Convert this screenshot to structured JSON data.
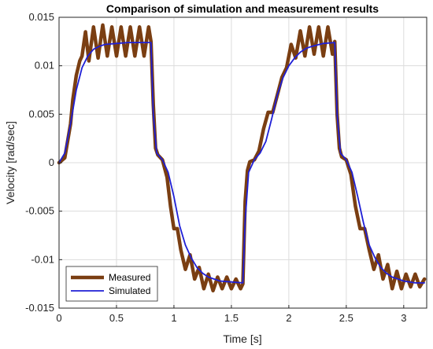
{
  "chart_data": {
    "type": "line",
    "title": "Comparison of simulation and measurement results",
    "xlabel": "Time [s]",
    "ylabel": "Velocity [rad/sec]",
    "xlim": [
      0,
      3.2
    ],
    "ylim": [
      -0.015,
      0.015
    ],
    "xticks": [
      0,
      0.5,
      1,
      1.5,
      2,
      2.5,
      3
    ],
    "xtick_labels": [
      "0",
      "0.5",
      "1",
      "1.5",
      "2",
      "2.5",
      "3"
    ],
    "yticks": [
      -0.015,
      -0.01,
      -0.005,
      0,
      0.005,
      0.01,
      0.015
    ],
    "ytick_labels": [
      "-0.015",
      "-0.01",
      "-0.005",
      "0",
      "0.005",
      "0.01",
      "0.015"
    ],
    "grid": true,
    "legend_position": "bottom-left",
    "series": [
      {
        "name": "Measured",
        "color": "#7a3e12",
        "x": [
          0,
          0.05,
          0.1,
          0.12,
          0.15,
          0.18,
          0.2,
          0.23,
          0.26,
          0.3,
          0.34,
          0.38,
          0.42,
          0.46,
          0.5,
          0.54,
          0.58,
          0.62,
          0.66,
          0.7,
          0.74,
          0.78,
          0.8,
          0.82,
          0.84,
          0.86,
          0.9,
          0.94,
          0.97,
          1.0,
          1.03,
          1.06,
          1.1,
          1.14,
          1.18,
          1.22,
          1.26,
          1.3,
          1.34,
          1.38,
          1.42,
          1.46,
          1.5,
          1.54,
          1.58,
          1.6,
          1.62,
          1.64,
          1.66,
          1.7,
          1.74,
          1.78,
          1.82,
          1.86,
          1.9,
          1.94,
          1.98,
          2.02,
          2.06,
          2.1,
          2.14,
          2.18,
          2.22,
          2.26,
          2.3,
          2.34,
          2.38,
          2.4,
          2.42,
          2.44,
          2.46,
          2.5,
          2.54,
          2.58,
          2.62,
          2.66,
          2.7,
          2.74,
          2.78,
          2.82,
          2.86,
          2.9,
          2.94,
          2.98,
          3.02,
          3.06,
          3.1,
          3.14,
          3.18
        ],
        "y": [
          0,
          0.0005,
          0.004,
          0.0065,
          0.009,
          0.0105,
          0.011,
          0.0135,
          0.0105,
          0.014,
          0.0108,
          0.0142,
          0.011,
          0.014,
          0.011,
          0.014,
          0.011,
          0.014,
          0.011,
          0.014,
          0.011,
          0.014,
          0.0125,
          0.006,
          0.0015,
          0.0008,
          0.0003,
          -0.0015,
          -0.0045,
          -0.0068,
          -0.0068,
          -0.009,
          -0.011,
          -0.0095,
          -0.012,
          -0.0108,
          -0.013,
          -0.0115,
          -0.0132,
          -0.0118,
          -0.013,
          -0.0118,
          -0.013,
          -0.012,
          -0.013,
          -0.0125,
          -0.004,
          -0.0008,
          0.0001,
          0.0003,
          0.0012,
          0.0035,
          0.0052,
          0.0052,
          0.007,
          0.0088,
          0.0098,
          0.0122,
          0.0108,
          0.0136,
          0.011,
          0.014,
          0.0112,
          0.014,
          0.011,
          0.014,
          0.0112,
          0.0125,
          0.005,
          0.0015,
          0.0006,
          0.0003,
          -0.0012,
          -0.0045,
          -0.0068,
          -0.0068,
          -0.009,
          -0.011,
          -0.0095,
          -0.012,
          -0.0105,
          -0.013,
          -0.0112,
          -0.013,
          -0.0115,
          -0.0128,
          -0.0115,
          -0.0128,
          -0.012
        ]
      },
      {
        "name": "Simulated",
        "color": "#1f1fd6",
        "x": [
          0,
          0.05,
          0.1,
          0.15,
          0.2,
          0.25,
          0.3,
          0.35,
          0.4,
          0.5,
          0.6,
          0.7,
          0.8,
          0.82,
          0.85,
          0.9,
          0.95,
          1.0,
          1.05,
          1.1,
          1.15,
          1.2,
          1.25,
          1.3,
          1.4,
          1.5,
          1.6,
          1.62,
          1.65,
          1.7,
          1.75,
          1.8,
          1.85,
          1.9,
          1.95,
          2.0,
          2.05,
          2.1,
          2.15,
          2.2,
          2.3,
          2.4,
          2.42,
          2.45,
          2.5,
          2.55,
          2.6,
          2.65,
          2.7,
          2.75,
          2.8,
          2.85,
          2.9,
          3.0,
          3.1,
          3.18
        ],
        "y": [
          0,
          0.001,
          0.004,
          0.0075,
          0.0098,
          0.011,
          0.0117,
          0.012,
          0.0122,
          0.0123,
          0.0124,
          0.0124,
          0.0124,
          0.005,
          0.001,
          0.0003,
          -0.001,
          -0.0035,
          -0.0065,
          -0.0085,
          -0.0098,
          -0.0108,
          -0.0114,
          -0.0118,
          -0.0122,
          -0.0123,
          -0.0124,
          -0.006,
          -0.001,
          0.0003,
          0.001,
          0.0022,
          0.0045,
          0.007,
          0.0088,
          0.01,
          0.0108,
          0.0114,
          0.0118,
          0.012,
          0.0123,
          0.0124,
          0.005,
          0.001,
          0.0003,
          -0.001,
          -0.0035,
          -0.0062,
          -0.0085,
          -0.0098,
          -0.0108,
          -0.0114,
          -0.0118,
          -0.0122,
          -0.0124,
          -0.0124
        ]
      }
    ]
  }
}
